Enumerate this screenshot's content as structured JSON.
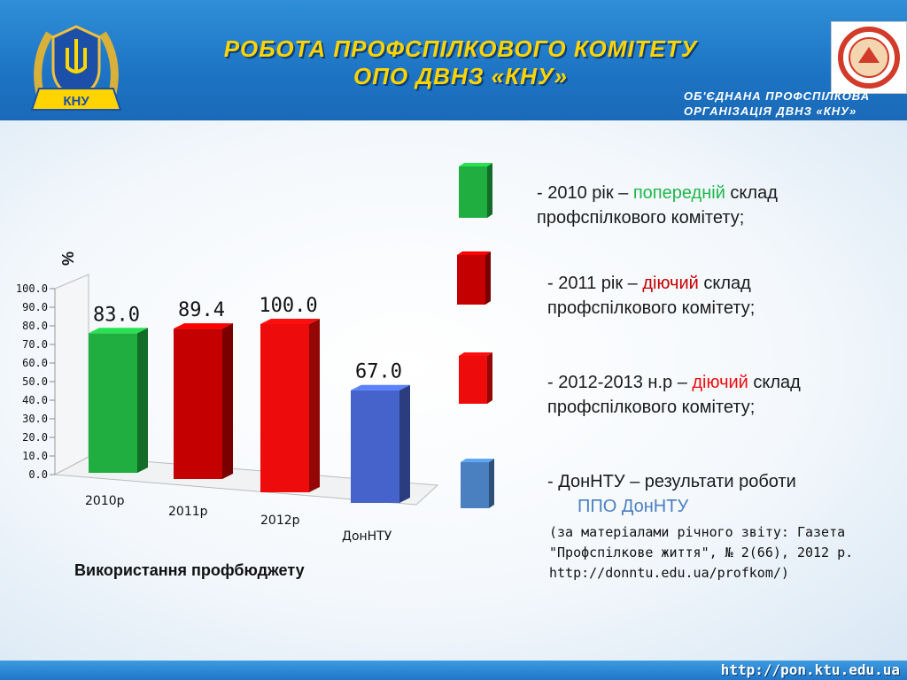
{
  "header": {
    "title_line1": "РОБОТА ПРОФСПІЛКОВОГО КОМІТЕТУ",
    "title_line2": "ОПО ДВНЗ «КНУ»",
    "emblem_text": "КНУ",
    "org_line1": "ОБ'ЄДНАНА ПРОФСПІЛКОВА",
    "org_line2": "ОРГАНІЗАЦІЯ  ДВНЗ «КНУ»"
  },
  "footer": {
    "url": "http://pon.ktu.edu.ua"
  },
  "chart_data": {
    "type": "bar",
    "title": "",
    "ylabel": "%",
    "xlabel": "",
    "ylim": [
      0,
      100
    ],
    "yticks": [
      "0.0",
      "10.0",
      "20.0",
      "30.0",
      "40.0",
      "50.0",
      "60.0",
      "70.0",
      "80.0",
      "90.0",
      "100.0"
    ],
    "categories": [
      "2010р",
      "2011р",
      "2012р",
      "ДонНТУ"
    ],
    "values": [
      83.0,
      89.4,
      100.0,
      67.0
    ],
    "value_labels": [
      "83.0",
      "89.4",
      "100.0",
      "67.0"
    ],
    "colors": [
      "#1fae3f",
      "#c40000",
      "#ee0b0b",
      "#4663cc"
    ],
    "grid": false,
    "legend_position": "right"
  },
  "caption": "Використання профбюджету",
  "legend": [
    {
      "dash": "-",
      "before": "2010 рік – ",
      "highlight": "попередній",
      "after": " склад",
      "line2": "профспілкового комітету;",
      "color": "#1db84a"
    },
    {
      "dash": "-",
      "before": "2011 рік – ",
      "highlight": "діючий",
      "after": " склад",
      "line2": "профспілкового комітету;",
      "color": "#c40000"
    },
    {
      "dash": "-",
      "before": "2012-2013 н.р – ",
      "highlight": "діючий",
      "after": " склад",
      "line2": "профспілкового комітету;",
      "color": "#ee0b0b"
    },
    {
      "dash": "-",
      "before": "ДонНТУ – результати роботи",
      "highlight": "",
      "after": "",
      "line2": "ППО ДонНТУ",
      "color": "#4a80c0"
    }
  ],
  "source": {
    "line1": "(за матеріалами річного звіту: Газета",
    "line2": "\"Профспілкове життя\", № 2(66), 2012 р.",
    "line3": "http://donntu.edu.ua/profkom/)"
  }
}
